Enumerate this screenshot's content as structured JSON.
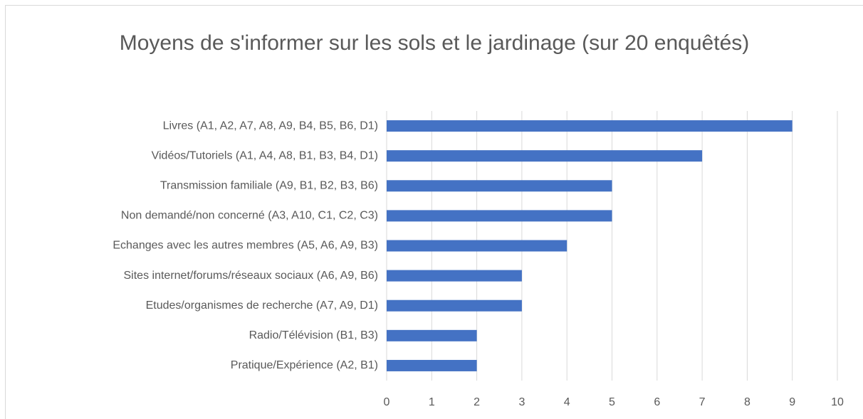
{
  "chart_data": {
    "type": "bar",
    "orientation": "horizontal",
    "title": "Moyens de s'informer sur les sols et le jardinage (sur 20 enquêtés)",
    "categories": [
      "Livres (A1, A2, A7, A8, A9, B4, B5, B6, D1)",
      "Vidéos/Tutoriels (A1, A4, A8, B1, B3, B4, D1)",
      "Transmission familiale (A9, B1, B2, B3, B6)",
      "Non demandé/non concerné (A3, A10, C1, C2, C3)",
      "Echanges avec les autres membres (A5, A6, A9, B3)",
      "Sites internet/forums/réseaux sociaux (A6, A9, B6)",
      "Etudes/organismes de recherche (A7, A9, D1)",
      "Radio/Télévision (B1, B3)",
      "Pratique/Expérience (A2, B1)"
    ],
    "values": [
      9,
      7,
      5,
      5,
      4,
      3,
      3,
      2,
      2
    ],
    "color": "#4472c4",
    "xlim": [
      0,
      10
    ],
    "xticks": [
      0,
      1,
      2,
      3,
      4,
      5,
      6,
      7,
      8,
      9,
      10
    ],
    "grid": true
  }
}
